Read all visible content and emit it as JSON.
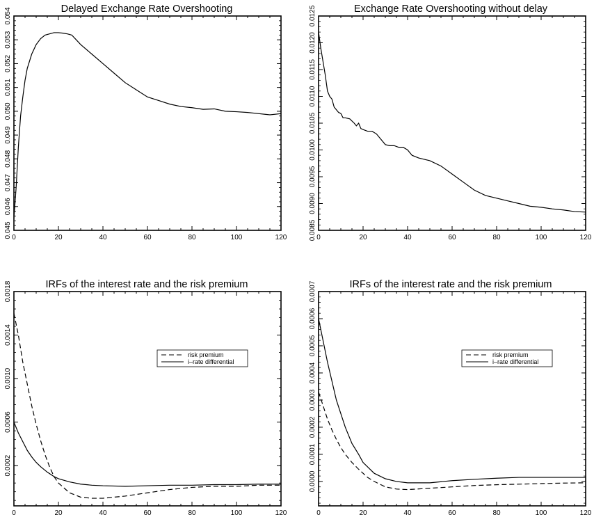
{
  "chart_data": [
    {
      "type": "line",
      "title": "Delayed Exchange Rate Overshooting",
      "xlabel": "",
      "ylabel": "",
      "xlim": [
        0,
        120
      ],
      "ylim": [
        0.045,
        0.054
      ],
      "xticks": [
        0,
        20,
        40,
        60,
        80,
        100,
        120
      ],
      "yticks": [
        "0.045",
        "0.046",
        "0.047",
        "0.048",
        "0.049",
        "0.050",
        "0.051",
        "0.052",
        "0.053",
        "0.054"
      ],
      "grid": false,
      "series": [
        {
          "style": "solid",
          "color": "#000000",
          "x": [
            0,
            1,
            2,
            3,
            4,
            5,
            6,
            8,
            10,
            12,
            14,
            16,
            18,
            20,
            22,
            24,
            26,
            28,
            30,
            35,
            40,
            45,
            50,
            55,
            60,
            65,
            70,
            75,
            80,
            85,
            90,
            95,
            100,
            105,
            110,
            115,
            120
          ],
          "y": [
            0.0455,
            0.0468,
            0.0485,
            0.0498,
            0.0506,
            0.0513,
            0.0518,
            0.0524,
            0.0528,
            0.05305,
            0.0532,
            0.05325,
            0.0533,
            0.0533,
            0.05328,
            0.05325,
            0.0532,
            0.053,
            0.0528,
            0.0524,
            0.052,
            0.0516,
            0.0512,
            0.0509,
            0.0506,
            0.05045,
            0.0503,
            0.0502,
            0.05015,
            0.05008,
            0.0501,
            0.05,
            0.04998,
            0.04995,
            0.0499,
            0.04985,
            0.0499
          ]
        }
      ]
    },
    {
      "type": "line",
      "title": "Exchange Rate Overshooting without delay",
      "xlabel": "",
      "ylabel": "",
      "xlim": [
        0,
        120
      ],
      "ylim": [
        0.0085,
        0.0125
      ],
      "xticks": [
        0,
        20,
        40,
        60,
        80,
        100,
        120
      ],
      "yticks": [
        "0.0085",
        "0.0090",
        "0.0095",
        "0.0100",
        "0.0105",
        "0.0110",
        "0.0115",
        "0.0120",
        "0.0125"
      ],
      "grid": false,
      "series": [
        {
          "style": "solid",
          "color": "#000000",
          "x": [
            0,
            1,
            2,
            3,
            4,
            5,
            6,
            7,
            8,
            9,
            10,
            11,
            12,
            14,
            16,
            17,
            18,
            19,
            20,
            22,
            24,
            26,
            28,
            30,
            32,
            34,
            36,
            38,
            40,
            42,
            45,
            50,
            55,
            60,
            65,
            70,
            75,
            80,
            85,
            90,
            95,
            100,
            105,
            110,
            115,
            120
          ],
          "y": [
            0.0122,
            0.0119,
            0.01165,
            0.0114,
            0.0111,
            0.011,
            0.01095,
            0.0108,
            0.01075,
            0.0107,
            0.01068,
            0.0106,
            0.0106,
            0.01058,
            0.0105,
            0.01045,
            0.0105,
            0.0104,
            0.01038,
            0.01035,
            0.01035,
            0.0103,
            0.0102,
            0.0101,
            0.01008,
            0.01008,
            0.01005,
            0.01005,
            0.01,
            0.0099,
            0.00985,
            0.0098,
            0.0097,
            0.00955,
            0.0094,
            0.00925,
            0.00915,
            0.0091,
            0.00905,
            0.009,
            0.00895,
            0.00893,
            0.0089,
            0.00888,
            0.00885,
            0.00884
          ]
        }
      ]
    },
    {
      "type": "line",
      "title": "IRFs of the interest rate and the risk premium",
      "xlabel": "",
      "ylabel": "",
      "xlim": [
        0,
        120
      ],
      "ylim": [
        -0.00017,
        0.0018
      ],
      "xticks": [
        0,
        20,
        40,
        60,
        80,
        100,
        120
      ],
      "yticks": [
        "0.0002",
        "0.0006",
        "0.0010",
        "0.0014",
        "0.0018"
      ],
      "ytick_values": [
        0.0002,
        0.0006,
        0.001,
        0.0014,
        0.0018
      ],
      "grid": false,
      "legend": "right",
      "series": [
        {
          "name": "risk premium",
          "style": "dashed",
          "color": "#000000",
          "x": [
            0,
            2,
            4,
            6,
            8,
            10,
            12,
            14,
            16,
            18,
            20,
            25,
            30,
            35,
            40,
            50,
            60,
            70,
            80,
            90,
            100,
            110,
            120
          ],
          "y": [
            0.0016,
            0.0014,
            0.00115,
            0.00095,
            0.00075,
            0.00058,
            0.00043,
            0.0003,
            0.00019,
            0.0001,
            4e-05,
            -5e-05,
            -9e-05,
            -0.0001,
            -0.0001,
            -8e-05,
            -5e-05,
            -2e-05,
            0.0,
            1e-05,
            1e-05,
            2e-05,
            2e-05
          ]
        },
        {
          "name": "i–rate differential",
          "style": "solid",
          "color": "#000000",
          "x": [
            0,
            2,
            4,
            6,
            8,
            10,
            12,
            15,
            18,
            20,
            25,
            30,
            35,
            40,
            50,
            60,
            70,
            80,
            90,
            100,
            110,
            120
          ],
          "y": [
            0.0006,
            0.0005,
            0.00042,
            0.00034,
            0.00028,
            0.00023,
            0.00019,
            0.00014,
            0.0001,
            8e-05,
            5e-05,
            3e-05,
            2e-05,
            1.5e-05,
            1e-05,
            1.5e-05,
            2e-05,
            2e-05,
            2.5e-05,
            2.5e-05,
            3e-05,
            3e-05
          ]
        }
      ]
    },
    {
      "type": "line",
      "title": "IRFs of the interest rate and the risk premium",
      "xlabel": "",
      "ylabel": "",
      "xlim": [
        0,
        120
      ],
      "ylim": [
        -9e-05,
        0.0007
      ],
      "xticks": [
        0,
        20,
        40,
        60,
        80,
        100,
        120
      ],
      "yticks": [
        "0.0000",
        "0.0001",
        "0.0002",
        "0.0003",
        "0.0004",
        "0.0005",
        "0.0006",
        "0.0007"
      ],
      "ytick_values": [
        0.0,
        0.0001,
        0.0002,
        0.0003,
        0.0004,
        0.0005,
        0.0006,
        0.0007
      ],
      "grid": false,
      "legend": "right",
      "series": [
        {
          "name": "risk premium",
          "style": "dashed",
          "color": "#000000",
          "x": [
            0,
            2,
            4,
            6,
            8,
            10,
            12,
            15,
            18,
            20,
            22,
            25,
            30,
            35,
            40,
            50,
            60,
            70,
            80,
            90,
            100,
            110,
            120
          ],
          "y": [
            0.00033,
            0.00028,
            0.00023,
            0.00019,
            0.000155,
            0.000125,
            0.0001,
            7e-05,
            4.5e-05,
            3e-05,
            1.5e-05,
            0.0,
            -2e-05,
            -2.8e-05,
            -3e-05,
            -2.5e-05,
            -2e-05,
            -1.5e-05,
            -1.2e-05,
            -1e-05,
            -8e-06,
            -6e-06,
            -5e-06
          ]
        },
        {
          "name": "i–rate differential",
          "style": "solid",
          "color": "#000000",
          "x": [
            0,
            2,
            4,
            6,
            8,
            10,
            12,
            15,
            18,
            20,
            25,
            30,
            35,
            40,
            50,
            60,
            70,
            80,
            90,
            100,
            110,
            120
          ],
          "y": [
            0.0006,
            0.00052,
            0.00044,
            0.00037,
            0.0003,
            0.00025,
            0.0002,
            0.00014,
            0.0001,
            7e-05,
            3e-05,
            1e-05,
            0.0,
            -5e-06,
            -5e-06,
            3e-06,
            8e-06,
            1.2e-05,
            1.5e-05,
            1.5e-05,
            1.5e-05,
            1.5e-05
          ]
        }
      ]
    }
  ]
}
